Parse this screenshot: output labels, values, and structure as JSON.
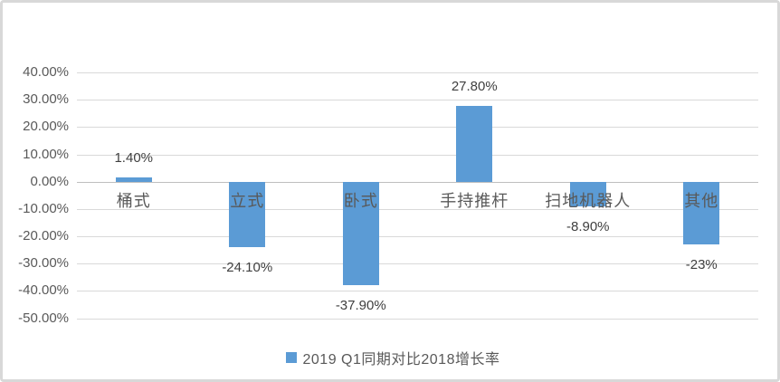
{
  "chart_data": {
    "type": "bar",
    "title": "",
    "xlabel": "",
    "ylabel": "",
    "categories": [
      "桶式",
      "立式",
      "卧式",
      "手持推杆",
      "扫地机器人",
      "其他"
    ],
    "values": [
      1.4,
      -24.1,
      -37.9,
      27.8,
      -8.9,
      -23
    ],
    "value_labels": [
      "1.40%",
      "-24.10%",
      "-37.90%",
      "27.80%",
      "-8.90%",
      "-23%"
    ],
    "yticks": [
      40,
      30,
      20,
      10,
      0,
      -10,
      -20,
      -30,
      -40,
      -50
    ],
    "ytick_labels": [
      "40.00%",
      "30.00%",
      "20.00%",
      "10.00%",
      "0.00%",
      "-10.00%",
      "-20.00%",
      "-30.00%",
      "-40.00%",
      "-50.00%"
    ],
    "ylim": [
      -50,
      40
    ],
    "grid": true,
    "bar_color": "#5B9BD5",
    "legend_position": "bottom",
    "legend": [
      {
        "label": "2019 Q1同期对比2018增长率",
        "color": "#5B9BD5"
      }
    ]
  },
  "colors": {
    "bar": "#5B9BD5",
    "gridline": "#D9D9D9",
    "axis_line": "#BFBFBF",
    "tick_text": "#595959",
    "value_label_text": "#3F3F3F",
    "category_text": "#595959",
    "card_border": "#D8D8D8",
    "background": "#FFFFFF"
  }
}
